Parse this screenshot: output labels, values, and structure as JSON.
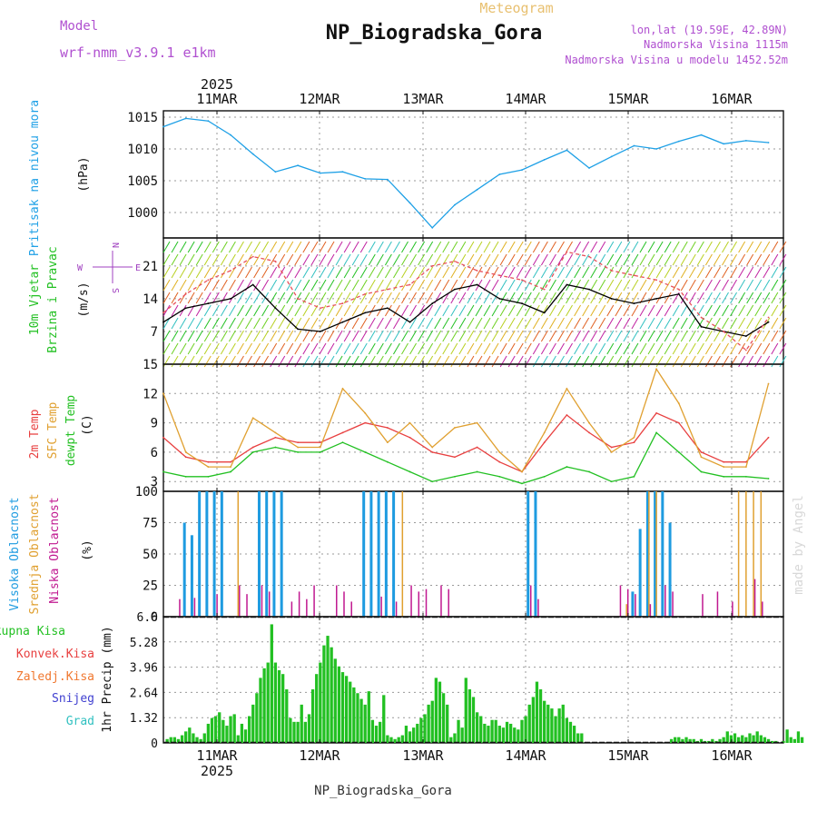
{
  "header": {
    "model_label": "Model",
    "model_value": "wrf-nmm_v3.9.1 e1km",
    "subtitle": "Meteogram",
    "title": "NP_Biogradska_Gora",
    "coords": "lon,lat (19.59E, 42.89N)",
    "altitude": "Nadmorska Visina 1115m",
    "model_altitude": "Nadmorska Visina u modelu 1452.52m",
    "footer": "NP_Biogradska_Gora",
    "watermark": "made by Angel"
  },
  "colors": {
    "pressure": "#1ea0e6",
    "wind_speed": "#000000",
    "wind_gust": "#e8505a",
    "temp2m": "#e84040",
    "sfc_temp": "#e0a030",
    "dewpoint": "#22c022",
    "high_cloud": "#1e9be0",
    "mid_cloud": "#e0a030",
    "low_cloud": "#c01890",
    "total_precip": "#22c022",
    "conv_precip": "#e84040",
    "frozen_precip": "#f07830",
    "snow": "#4040d0",
    "graupel": "#30c0c0",
    "purple_label": "#a040c0"
  },
  "x_axis": {
    "year": "2025",
    "days": [
      "11MAR",
      "12MAR",
      "13MAR",
      "14MAR",
      "15MAR",
      "16MAR"
    ]
  },
  "chart_data": [
    {
      "type": "line",
      "name": "pressure",
      "ylabel": "Pritisak na nivou mora",
      "unit": "(hPa)",
      "ylim": [
        996,
        1016
      ],
      "yticks": [
        "1015",
        "1010",
        "1005",
        "1000"
      ],
      "ytick_values": [
        1015,
        1010,
        1005,
        1000
      ],
      "grid": true,
      "x_hours": [
        0,
        6,
        12,
        18,
        24,
        30,
        36,
        42,
        48,
        54,
        60,
        66,
        72,
        78,
        84,
        90,
        96,
        102,
        108,
        114,
        120,
        126,
        132,
        138,
        144,
        150,
        156,
        162
      ],
      "series": [
        {
          "values": [
            1013.5,
            1014.8,
            1014.4,
            1012.2,
            1009.2,
            1006.4,
            1007.4,
            1006.2,
            1006.4,
            1005.3,
            1005.2,
            1001.5,
            997.6,
            1001.2,
            1003.6,
            1006.0,
            1006.7,
            1008.3,
            1009.8,
            1007.0,
            1008.8,
            1010.5,
            1010.0,
            1011.2,
            1012.2,
            1010.8,
            1011.3,
            1011.0
          ]
        }
      ]
    },
    {
      "type": "line",
      "name": "wind",
      "ylabel": "10m Vjetar",
      "ylabel2": "Brzina i Pravac",
      "unit": "(m/s)",
      "ylim": [
        0,
        27
      ],
      "yticks": [
        "21",
        "14",
        "7"
      ],
      "ytick_values": [
        21,
        14,
        7
      ],
      "grid": true,
      "legend": {
        "N": "N",
        "W": "W",
        "E": "E",
        "S": "S"
      },
      "x_hours": [
        0,
        6,
        12,
        18,
        24,
        30,
        36,
        42,
        48,
        54,
        60,
        66,
        72,
        78,
        84,
        90,
        96,
        102,
        108,
        114,
        120,
        126,
        132,
        138,
        144,
        150,
        156,
        162
      ],
      "series": [
        {
          "values": [
            9,
            12,
            13,
            14,
            17,
            12,
            7.5,
            7,
            9,
            11,
            12,
            9,
            13,
            16,
            17,
            14,
            13,
            11,
            17,
            16,
            14,
            13,
            14,
            15,
            8,
            7,
            6,
            9
          ]
        },
        {
          "values": [
            11,
            15,
            18,
            20,
            23,
            22,
            14,
            12,
            13,
            15,
            16,
            17,
            21,
            22,
            20,
            19,
            18,
            16,
            24,
            23,
            20,
            19,
            18,
            16,
            10,
            7,
            3,
            10
          ]
        }
      ]
    },
    {
      "type": "line",
      "name": "temperature",
      "ylabel": "2m Temp",
      "ylabel2": "SFC Temp",
      "ylabel3": "dewpt Temp",
      "unit": "(C)",
      "ylim": [
        2,
        15
      ],
      "yticks": [
        "15",
        "12",
        "9",
        "6",
        "3"
      ],
      "ytick_values": [
        15,
        12,
        9,
        6,
        3
      ],
      "grid": true,
      "x_hours": [
        0,
        6,
        12,
        18,
        24,
        30,
        36,
        42,
        48,
        54,
        60,
        66,
        72,
        78,
        84,
        90,
        96,
        102,
        108,
        114,
        120,
        126,
        132,
        138,
        144,
        150,
        156,
        162
      ],
      "series": [
        {
          "values": [
            7.5,
            5.5,
            5,
            5,
            6.5,
            7.5,
            7,
            7,
            8,
            9,
            8.5,
            7.5,
            6,
            5.5,
            6.5,
            5,
            4,
            7,
            9.8,
            8,
            6.5,
            7,
            10,
            9,
            6,
            5,
            5,
            7.5
          ]
        },
        {
          "values": [
            12,
            6,
            4.5,
            4.5,
            9.5,
            8,
            6.5,
            6.5,
            12.5,
            10,
            7,
            9,
            6.5,
            8.5,
            9,
            6,
            4,
            8,
            12.5,
            9,
            6,
            7.5,
            14.5,
            11,
            5.5,
            4.5,
            4.5,
            13
          ]
        },
        {
          "values": [
            4,
            3.5,
            3.5,
            4,
            6,
            6.5,
            6,
            6,
            7,
            6,
            5,
            4,
            3,
            3.5,
            4,
            3.5,
            2.8,
            3.5,
            4.5,
            4,
            3,
            3.5,
            8,
            6,
            4,
            3.5,
            3.5,
            3.3
          ]
        }
      ]
    },
    {
      "type": "bar",
      "name": "clouds",
      "ylabel": "Visoka Oblacnost",
      "ylabel2": "Srednja Oblacnost",
      "ylabel3": "Niska Oblacnost",
      "unit": "(%)",
      "ylim": [
        0,
        100
      ],
      "yticks": [
        "100",
        "75",
        "50",
        "25",
        "0"
      ],
      "ytick_values": [
        100,
        75,
        50,
        25,
        0
      ],
      "grid": true,
      "x_hours": [
        2,
        4,
        6,
        8,
        10,
        12,
        14,
        16,
        18,
        20,
        22,
        24,
        26,
        28,
        30,
        32,
        34,
        36,
        38,
        40,
        42,
        44,
        46,
        48,
        50,
        52,
        54,
        56,
        58,
        60,
        62,
        64,
        66,
        68,
        70,
        72,
        74,
        76,
        78,
        80,
        82,
        84,
        86,
        88,
        90,
        92,
        94,
        96,
        98,
        100,
        102,
        104,
        106,
        108,
        110,
        112,
        114,
        116,
        118,
        120,
        122,
        124,
        126,
        128,
        130,
        132,
        134,
        136,
        138,
        140,
        142,
        144,
        146,
        148,
        150,
        152,
        154,
        156,
        158,
        160
      ],
      "series": [
        {
          "name": "high",
          "values": [
            0,
            0,
            75,
            65,
            100,
            100,
            100,
            100,
            0,
            0,
            0,
            0,
            100,
            100,
            100,
            100,
            0,
            0,
            0,
            0,
            0,
            0,
            0,
            0,
            0,
            0,
            100,
            100,
            100,
            100,
            100,
            0,
            0,
            0,
            0,
            0,
            0,
            0,
            0,
            0,
            0,
            0,
            0,
            0,
            0,
            0,
            0,
            0,
            100,
            100,
            0,
            0,
            0,
            0,
            0,
            0,
            0,
            0,
            0,
            0,
            0,
            0,
            20,
            70,
            100,
            100,
            100,
            75,
            0,
            0,
            0,
            0,
            0,
            0,
            0,
            0,
            0,
            0,
            0,
            0
          ]
        },
        {
          "name": "mid",
          "values": [
            0,
            0,
            0,
            0,
            0,
            0,
            0,
            0,
            0,
            100,
            0,
            0,
            0,
            0,
            0,
            0,
            0,
            0,
            0,
            0,
            0,
            0,
            0,
            0,
            0,
            0,
            0,
            0,
            0,
            0,
            0,
            100,
            0,
            0,
            0,
            0,
            0,
            0,
            0,
            0,
            0,
            0,
            0,
            0,
            0,
            0,
            0,
            0,
            0,
            0,
            0,
            0,
            0,
            0,
            0,
            0,
            0,
            0,
            0,
            0,
            0,
            10,
            0,
            0,
            100,
            100,
            0,
            0,
            0,
            0,
            0,
            0,
            0,
            0,
            0,
            0,
            100,
            100,
            100,
            100
          ]
        },
        {
          "name": "low",
          "values": [
            0,
            14,
            0,
            15,
            0,
            0,
            18,
            0,
            0,
            25,
            18,
            0,
            25,
            20,
            0,
            0,
            12,
            20,
            14,
            25,
            0,
            0,
            25,
            20,
            12,
            0,
            0,
            0,
            16,
            0,
            12,
            0,
            25,
            20,
            22,
            0,
            25,
            22,
            0,
            0,
            0,
            0,
            0,
            0,
            0,
            0,
            0,
            0,
            25,
            14,
            0,
            0,
            0,
            0,
            0,
            0,
            0,
            0,
            0,
            0,
            25,
            22,
            18,
            0,
            10,
            0,
            25,
            20,
            0,
            0,
            0,
            18,
            0,
            20,
            0,
            12,
            0,
            0,
            30,
            12
          ]
        }
      ]
    },
    {
      "type": "bar",
      "name": "precipitation",
      "legend": [
        "Ukupna Kisa",
        "Konvek.Kisa",
        "Zaledj.Kisa",
        "Snijeg",
        "Grad"
      ],
      "ylabel": "1hr Precip (mm)",
      "ylim": [
        0,
        6.6
      ],
      "yticks": [
        "6.6",
        "5.28",
        "3.96",
        "2.64",
        "1.32",
        "0"
      ],
      "ytick_values": [
        6.6,
        5.28,
        3.96,
        2.64,
        1.32,
        0
      ],
      "grid": true,
      "x_start_hour": 1,
      "x_step_hour": 1,
      "series": [
        {
          "name": "total",
          "values": [
            0.2,
            0.3,
            0.3,
            0.2,
            0.4,
            0.6,
            0.8,
            0.5,
            0.3,
            0.2,
            0.5,
            1.0,
            1.3,
            1.4,
            1.6,
            1.2,
            0.9,
            1.4,
            1.5,
            0.4,
            1.0,
            0.7,
            1.4,
            2.0,
            2.6,
            3.4,
            3.9,
            4.2,
            6.2,
            4.2,
            3.8,
            3.6,
            2.8,
            1.3,
            1.1,
            1.1,
            2.0,
            1.1,
            1.5,
            2.8,
            3.6,
            4.2,
            5.1,
            5.6,
            5.0,
            4.4,
            4.0,
            3.7,
            3.5,
            3.2,
            2.9,
            2.6,
            2.3,
            2.0,
            2.7,
            1.2,
            0.9,
            1.1,
            2.5,
            0.4,
            0.3,
            0.2,
            0.3,
            0.4,
            0.9,
            0.6,
            0.8,
            1.0,
            1.3,
            1.5,
            2.0,
            2.2,
            3.4,
            3.2,
            2.6,
            2.0,
            0.3,
            0.5,
            1.2,
            0.8,
            3.4,
            2.8,
            2.4,
            1.6,
            1.4,
            1.0,
            0.9,
            1.2,
            1.2,
            0.9,
            0.8,
            1.1,
            1.0,
            0.8,
            0.7,
            1.2,
            1.4,
            2.0,
            2.4,
            3.2,
            2.8,
            2.2,
            2.0,
            1.8,
            1.4,
            1.8,
            2.0,
            1.3,
            1.1,
            0.9,
            0.5,
            0.5,
            0.0,
            0.0,
            0.0,
            0.0,
            0.0,
            0.0,
            0.0,
            0.0,
            0.0,
            0.0,
            0.0,
            0.0,
            0.0,
            0.0,
            0.0,
            0.0,
            0.0,
            0.0,
            0.0,
            0.0,
            0.0,
            0.0,
            0.0,
            0.2,
            0.3,
            0.3,
            0.2,
            0.3,
            0.2,
            0.2,
            0.1,
            0.2,
            0.1,
            0.1,
            0.2,
            0.1,
            0.2,
            0.3,
            0.6,
            0.4,
            0.5,
            0.3,
            0.4,
            0.3,
            0.5,
            0.4,
            0.6,
            0.4,
            0.3,
            0.2,
            0.1,
            0.1,
            0.0,
            0.1,
            0.7,
            0.3,
            0.2,
            0.6,
            0.3
          ]
        }
      ]
    }
  ]
}
